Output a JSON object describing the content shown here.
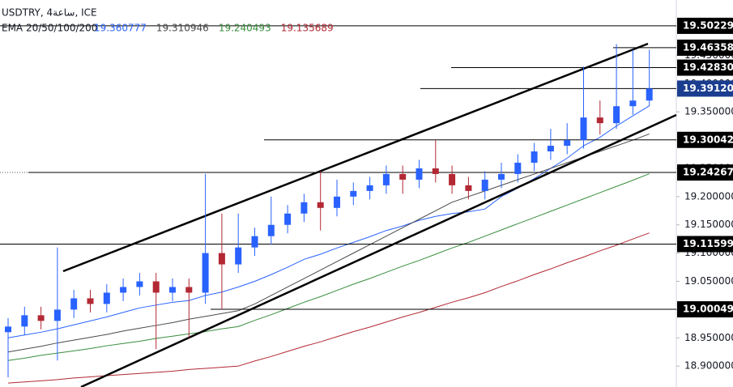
{
  "chart_data": {
    "type": "candlestick",
    "title": "USDTRY, 4ساعة, ICE",
    "indicator_label": "EMA 20/50/100/200",
    "categories": [
      null,
      null,
      null,
      null,
      null,
      null,
      null,
      null,
      null,
      null,
      null,
      null,
      null,
      null,
      null,
      null,
      null,
      null,
      null,
      null,
      null,
      null,
      null,
      null,
      null,
      null,
      null,
      null,
      null,
      null,
      null,
      null,
      null,
      null,
      null,
      null,
      null,
      null,
      null,
      null
    ],
    "open": [
      18.96,
      18.97,
      18.99,
      18.98,
      19.0,
      19.02,
      19.01,
      19.03,
      19.04,
      19.05,
      19.03,
      19.04,
      19.03,
      19.1,
      19.08,
      19.11,
      19.13,
      19.15,
      19.17,
      19.19,
      19.18,
      19.2,
      19.21,
      19.22,
      19.24,
      19.23,
      19.25,
      19.24,
      19.22,
      19.21,
      19.23,
      19.24,
      19.26,
      19.28,
      19.29,
      19.3,
      19.34,
      19.33,
      19.36,
      19.37
    ],
    "high": [
      18.985,
      19.005,
      19.005,
      19.11,
      19.035,
      19.035,
      19.045,
      19.055,
      19.065,
      19.065,
      19.055,
      19.055,
      19.24,
      19.17,
      19.17,
      19.145,
      19.2,
      19.185,
      19.205,
      19.245,
      19.23,
      19.225,
      19.235,
      19.255,
      19.255,
      19.265,
      19.3,
      19.255,
      19.235,
      19.245,
      19.26,
      19.275,
      19.295,
      19.32,
      19.33,
      19.43,
      19.37,
      19.47,
      19.46,
      19.46
    ],
    "low": [
      18.88,
      18.955,
      18.965,
      18.91,
      18.985,
      18.995,
      18.995,
      19.015,
      19.025,
      18.93,
      19.015,
      18.95,
      19.01,
      19.0,
      19.065,
      19.095,
      19.115,
      19.135,
      19.155,
      19.14,
      19.165,
      19.185,
      19.195,
      19.205,
      19.205,
      19.215,
      19.225,
      19.205,
      19.195,
      19.195,
      19.215,
      19.225,
      19.245,
      19.265,
      19.275,
      19.285,
      19.31,
      19.32,
      19.345,
      19.36
    ],
    "close": [
      18.97,
      18.99,
      18.98,
      19.0,
      19.02,
      19.01,
      19.03,
      19.04,
      19.05,
      19.03,
      19.04,
      19.03,
      19.1,
      19.08,
      19.11,
      19.13,
      19.15,
      19.17,
      19.19,
      19.18,
      19.2,
      19.21,
      19.22,
      19.24,
      19.23,
      19.25,
      19.24,
      19.22,
      19.21,
      19.23,
      19.24,
      19.26,
      19.28,
      19.29,
      19.3,
      19.34,
      19.33,
      19.36,
      19.37,
      19.3912
    ],
    "up_color": "#2962ff",
    "down_color": "#b22833",
    "series": [
      {
        "color": "#2962ff",
        "values": [
          18.95,
          18.955,
          18.96,
          18.966,
          18.973,
          18.98,
          18.987,
          18.995,
          19.003,
          19.008,
          19.013,
          19.016,
          19.025,
          19.031,
          19.04,
          19.05,
          19.062,
          19.075,
          19.089,
          19.098,
          19.109,
          19.119,
          19.129,
          19.14,
          19.148,
          19.158,
          19.165,
          19.17,
          19.173,
          19.178,
          19.2,
          19.215,
          19.232,
          19.25,
          19.268,
          19.29,
          19.305,
          19.325,
          19.343,
          19.360777
        ]
      },
      {
        "color": "#4a4a4a",
        "values": [
          18.925,
          18.93,
          18.935,
          18.941,
          18.946,
          18.951,
          18.956,
          18.962,
          18.967,
          18.972,
          18.977,
          18.983,
          18.988,
          18.993,
          18.998,
          19.01,
          19.025,
          19.04,
          19.055,
          19.07,
          19.085,
          19.1,
          19.115,
          19.13,
          19.145,
          19.16,
          19.175,
          19.19,
          19.2,
          19.21,
          19.22,
          19.23,
          19.24,
          19.25,
          19.26,
          19.27,
          19.28,
          19.29,
          19.3,
          19.310946
        ]
      },
      {
        "color": "#388e3c",
        "values": [
          18.91,
          18.914,
          18.919,
          18.923,
          18.927,
          18.931,
          18.936,
          18.94,
          18.944,
          18.949,
          18.953,
          18.957,
          18.961,
          18.966,
          18.97,
          18.981,
          18.991,
          19.002,
          19.013,
          19.023,
          19.034,
          19.045,
          19.055,
          19.066,
          19.077,
          19.087,
          19.098,
          19.109,
          19.119,
          19.13,
          19.141,
          19.152,
          19.163,
          19.174,
          19.185,
          19.196,
          19.207,
          19.218,
          19.229,
          19.240493
        ]
      },
      {
        "color": "#b22833",
        "values": [
          18.87,
          18.872,
          18.874,
          18.876,
          18.879,
          18.881,
          18.883,
          18.885,
          18.887,
          18.889,
          18.891,
          18.894,
          18.896,
          18.898,
          18.9,
          18.909,
          18.917,
          18.926,
          18.935,
          18.943,
          18.952,
          18.961,
          18.969,
          18.978,
          18.987,
          18.995,
          19.004,
          19.013,
          19.021,
          19.03,
          19.041,
          19.051,
          19.062,
          19.072,
          19.083,
          19.093,
          19.104,
          19.114,
          19.125,
          19.135689
        ]
      }
    ],
    "levels": [
      19.502292,
      19.463586,
      19.428304,
      19.300425,
      19.242675,
      19.115999,
      19.000499
    ],
    "current_price": {
      "value": 19.3912,
      "label": "19.391200"
    },
    "current_color": "#1b3d8f",
    "ylim": [
      18.863,
      19.548
    ],
    "yticks": [
      {
        "value": 18.9,
        "label": "18.900000"
      },
      {
        "value": 18.95,
        "label": "18.950000"
      },
      {
        "value": 19.0,
        "label": "19.000000"
      },
      {
        "value": 19.05,
        "label": "19.050000"
      },
      {
        "value": 19.1,
        "label": "19.100000"
      },
      {
        "value": 19.15,
        "label": "19.150000"
      },
      {
        "value": 19.2,
        "label": "19.200000"
      },
      {
        "value": 19.25,
        "label": "19.250000"
      },
      {
        "value": 19.3,
        "label": "19.300000"
      },
      {
        "value": 19.35,
        "label": "19.350000"
      },
      {
        "value": 19.4,
        "label": "19.400000"
      },
      {
        "value": 19.45,
        "label": "19.450000"
      }
    ]
  }
}
